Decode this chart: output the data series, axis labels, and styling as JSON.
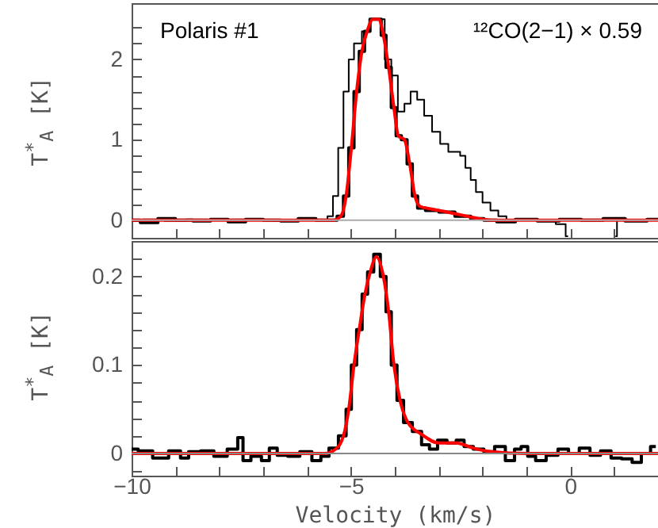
{
  "chart_data": [
    {
      "type": "step",
      "xlim": [
        -10,
        2
      ],
      "ylim": [
        -0.22,
        2.7
      ],
      "tick_labels": "y",
      "xticks": [
        {
          "value": -10,
          "label": null
        },
        {
          "value": -9,
          "label": null
        },
        {
          "value": -8,
          "label": null
        },
        {
          "value": -7,
          "label": null
        },
        {
          "value": -6,
          "label": null
        },
        {
          "value": -5,
          "label": null
        },
        {
          "value": -4,
          "label": null
        },
        {
          "value": -3,
          "label": null
        },
        {
          "value": -2,
          "label": null
        },
        {
          "value": -1,
          "label": null
        },
        {
          "value": 0,
          "label": null
        },
        {
          "value": 1,
          "label": null
        },
        {
          "value": 2,
          "label": null
        }
      ],
      "yticks": [
        0,
        {
          "value": 0.2,
          "label": null
        },
        {
          "value": 0.4,
          "label": null
        },
        {
          "value": 0.6,
          "label": null
        },
        {
          "value": 0.8,
          "label": null
        },
        1,
        {
          "value": 1.2,
          "label": null
        },
        {
          "value": 1.4,
          "label": null
        },
        {
          "value": 1.6,
          "label": null
        },
        {
          "value": 1.8,
          "label": null
        },
        2,
        {
          "value": 2.2,
          "label": null
        },
        {
          "value": 2.4,
          "label": null
        }
      ],
      "ylabel": "T$^{*}$$_{A}$ [K]",
      "annotations": [
        "Polaris #1",
        "¹²CO(2−1) × 0.59"
      ],
      "ref_lines": [
        {
          "axis": "y",
          "value": 0,
          "color": "#aaaaaa"
        }
      ],
      "series": [
        {
          "type": "step",
          "color": "#000000",
          "x": [
            -10,
            -9.5,
            -9,
            -8.5,
            -8,
            -7.5,
            -7,
            -6.5,
            -6,
            -5.6,
            -5.47,
            -5.35,
            -5.23,
            -5.11,
            -4.99,
            -4.87,
            -4.63,
            -4.5,
            -4.32,
            -4.14,
            -4.02,
            -3.84,
            -3.72,
            -3.56,
            -3.42,
            -3.24,
            -3.06,
            -2.87,
            -2.69,
            -2.57,
            -2.45,
            -2.33,
            -2.21,
            -2.09,
            -1.91,
            -1.73,
            -1.55,
            -1.36,
            -1,
            -0.5,
            -0.16,
            -0.05,
            0,
            0.5,
            1.03,
            1.1,
            1.5,
            2
          ],
          "values": [
            0,
            0.01,
            -0.01,
            0.01,
            0,
            0.01,
            0,
            -0.01,
            0.01,
            0,
            0.05,
            0.3,
            0.9,
            1.6,
            2.0,
            2.2,
            2.35,
            2.5,
            2.5,
            2.0,
            1.8,
            1.35,
            1.45,
            1.6,
            1.5,
            1.3,
            1.1,
            0.95,
            0.85,
            0.85,
            0.8,
            0.65,
            0.5,
            0.35,
            0.22,
            0.12,
            0.05,
            0,
            0.01,
            0,
            -0.05,
            -0.2,
            null,
            null,
            -0.2,
            0.01,
            0,
            0.01
          ]
        },
        {
          "type": "step",
          "color": "#000000",
          "x": [
            -10,
            -9.6,
            -9.2,
            -8.8,
            -8.4,
            -8,
            -7.6,
            -7.2,
            -6.8,
            -6.4,
            -6,
            -5.6,
            -5.4,
            -5.23,
            -5.11,
            -4.99,
            -4.87,
            -4.75,
            -4.63,
            -4.5,
            -4.36,
            -4.26,
            -4.14,
            -4.02,
            -3.92,
            -3.78,
            -3.66,
            -3.54,
            -3.42,
            -3.18,
            -2.81,
            -2.45,
            -2.09,
            -1.85,
            -1.5,
            -1,
            -0.5,
            0,
            0.5,
            1,
            1.5,
            2
          ],
          "values": [
            0,
            -0.03,
            0.02,
            0,
            -0.01,
            0.01,
            -0.02,
            0.01,
            0,
            -0.01,
            0.02,
            0,
            0,
            0.05,
            0.3,
            0.9,
            1.6,
            2.1,
            2.35,
            2.5,
            2.5,
            2.3,
            1.9,
            1.4,
            1.05,
            1.0,
            0.7,
            0.3,
            0.15,
            0.12,
            0.1,
            0.05,
            0.02,
            0,
            -0.02,
            0.01,
            -0.01,
            0.01,
            0,
            0.02,
            -0.01,
            0.01
          ]
        },
        {
          "type": "line",
          "color": "#ff0000",
          "x": [
            -10,
            -5.4,
            -5.23,
            -5.11,
            -4.99,
            -4.87,
            -4.75,
            -4.63,
            -4.5,
            -4.36,
            -4.26,
            -4.14,
            -4.02,
            -3.92,
            -3.78,
            -3.66,
            -3.54,
            -3.42,
            -3.18,
            -2.81,
            -2.45,
            -2.09,
            -1.8,
            2
          ],
          "values": [
            0,
            0,
            0.05,
            0.3,
            0.9,
            1.6,
            2.1,
            2.35,
            2.5,
            2.5,
            2.3,
            1.9,
            1.4,
            1.05,
            1.0,
            0.7,
            0.3,
            0.17,
            0.14,
            0.1,
            0.06,
            0.02,
            0,
            0
          ]
        }
      ]
    },
    {
      "type": "step",
      "xlim": [
        -10,
        2
      ],
      "ylim": [
        -0.025,
        0.24
      ],
      "xticks": [
        {
          "value": -10,
          "label": "−10"
        },
        {
          "value": -9,
          "label": null
        },
        {
          "value": -8,
          "label": null
        },
        {
          "value": -7,
          "label": null
        },
        {
          "value": -6,
          "label": null
        },
        {
          "value": -5,
          "label": "−5"
        },
        {
          "value": -4,
          "label": null
        },
        {
          "value": -3,
          "label": null
        },
        {
          "value": -2,
          "label": null
        },
        {
          "value": -1,
          "label": null
        },
        0,
        {
          "value": 1,
          "label": null
        },
        {
          "value": 2,
          "label": null
        }
      ],
      "yticks": [
        {
          "value": -0.02,
          "label": null
        },
        0,
        {
          "value": 0.02,
          "label": null
        },
        {
          "value": 0.04,
          "label": null
        },
        {
          "value": 0.06,
          "label": null
        },
        {
          "value": 0.08,
          "label": null
        },
        0.1,
        {
          "value": 0.12,
          "label": null
        },
        {
          "value": 0.14,
          "label": null
        },
        {
          "value": 0.16,
          "label": null
        },
        {
          "value": 0.18,
          "label": null
        },
        0.2,
        {
          "value": 0.22,
          "label": null
        }
      ],
      "xlabel": "Velocity (km/s)",
      "ylabel": "T$^{*}$$_{A}$ [K]",
      "ref_lines": [
        {
          "axis": "y",
          "value": 0,
          "color": "#888888"
        }
      ],
      "series": [
        {
          "type": "step",
          "color": "#000000",
          "x": [
            -10,
            -9.7,
            -9.34,
            -8.97,
            -8.8,
            -8.6,
            -8.25,
            -8.0,
            -7.64,
            -7.52,
            -7.4,
            -7.16,
            -6.92,
            -6.8,
            -6.56,
            -6.32,
            -6.01,
            -5.77,
            -5.6,
            -5.4,
            -5.17,
            -5.05,
            -4.93,
            -4.81,
            -4.68,
            -4.56,
            -4.4,
            -4.26,
            -4.14,
            -4.02,
            -3.88,
            -3.72,
            -3.48,
            -3.3,
            -3.12,
            -2.93,
            -2.69,
            -2.51,
            -2.33,
            -2.09,
            -1.85,
            -1.6,
            -1.36,
            -1.18,
            -1.06,
            -0.88,
            -0.7,
            -0.4,
            -0.16,
            0.08,
            0.33,
            0.57,
            0.81,
            1.05,
            1.29,
            1.53,
            1.71,
            1.95
          ],
          "values": [
            0.005,
            0.003,
            -0.005,
            0.003,
            -0.005,
            0.002,
            0.003,
            -0.003,
            0.005,
            0.018,
            -0.008,
            -0.003,
            -0.008,
            0.006,
            -0.002,
            -0.003,
            0.002,
            -0.008,
            -0.003,
            0.006,
            0.02,
            0.05,
            0.1,
            0.14,
            0.18,
            0.205,
            0.225,
            0.2,
            0.16,
            0.1,
            0.06,
            0.035,
            0.025,
            0.01,
            0.005,
            0.015,
            0.012,
            0.015,
            0.008,
            0.005,
            0.002,
            0.008,
            -0.008,
            0.005,
            0.008,
            -0.003,
            -0.008,
            -0.002,
            0.005,
            0,
            0.006,
            -0.002,
            0.003,
            -0.005,
            -0.006,
            -0.01,
            0,
            0.008
          ]
        },
        {
          "type": "line",
          "color": "#ff0000",
          "x": [
            -10,
            -5.6,
            -5.35,
            -5.17,
            -5.05,
            -4.93,
            -4.81,
            -4.68,
            -4.56,
            -4.42,
            -4.26,
            -4.14,
            -4.02,
            -3.88,
            -3.7,
            -3.4,
            -3.0,
            -2.6,
            -2.2,
            -1.8,
            -1,
            2
          ],
          "values": [
            0,
            0,
            0.005,
            0.02,
            0.05,
            0.1,
            0.14,
            0.18,
            0.205,
            0.222,
            0.2,
            0.16,
            0.1,
            0.06,
            0.035,
            0.022,
            0.012,
            0.012,
            0.006,
            0.002,
            0,
            0
          ]
        }
      ]
    }
  ]
}
